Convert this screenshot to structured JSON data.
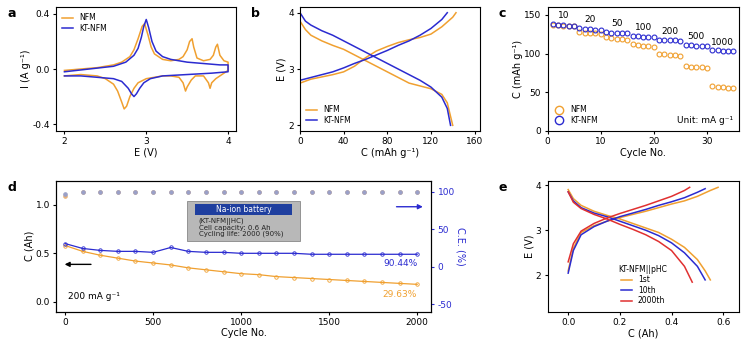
{
  "chart_data": [
    {
      "panel": "a",
      "type": "line",
      "x_label": "E (V)",
      "y_label": "I (A g⁻¹)",
      "xlim": [
        1.9,
        4.1
      ],
      "xticks": [
        2,
        3,
        4
      ],
      "ylim": [
        -0.45,
        0.45
      ],
      "yticks": [
        -0.4,
        0.0,
        0.4
      ],
      "legend": "upper left",
      "series": [
        {
          "name": "NFM",
          "color": "#f0a030",
          "x": [
            2.0,
            2.2,
            2.4,
            2.6,
            2.7,
            2.8,
            2.85,
            2.9,
            2.95,
            2.98,
            3.02,
            3.06,
            3.1,
            3.2,
            3.3,
            3.4,
            3.45,
            3.5,
            3.53,
            3.56,
            3.58,
            3.62,
            3.7,
            3.78,
            3.82,
            3.85,
            3.87,
            3.9,
            3.95,
            4.0,
            4.0,
            3.95,
            3.9,
            3.85,
            3.8,
            3.78,
            3.76,
            3.7,
            3.6,
            3.55,
            3.5,
            3.48,
            3.45,
            3.4,
            3.3,
            3.2,
            3.1,
            3.0,
            2.9,
            2.85,
            2.8,
            2.76,
            2.73,
            2.7,
            2.65,
            2.6,
            2.5,
            2.4,
            2.2,
            2.0
          ],
          "values": [
            -0.01,
            0.0,
            0.01,
            0.03,
            0.05,
            0.09,
            0.14,
            0.22,
            0.31,
            0.33,
            0.25,
            0.16,
            0.11,
            0.07,
            0.06,
            0.07,
            0.09,
            0.14,
            0.2,
            0.22,
            0.16,
            0.08,
            0.06,
            0.07,
            0.1,
            0.16,
            0.18,
            0.1,
            0.06,
            0.05,
            -0.01,
            -0.03,
            -0.05,
            -0.07,
            -0.1,
            -0.14,
            -0.1,
            -0.05,
            -0.05,
            -0.08,
            -0.13,
            -0.16,
            -0.1,
            -0.06,
            -0.05,
            -0.05,
            -0.06,
            -0.07,
            -0.1,
            -0.14,
            -0.2,
            -0.27,
            -0.29,
            -0.24,
            -0.16,
            -0.11,
            -0.07,
            -0.05,
            -0.04,
            -0.05
          ]
        },
        {
          "name": "KT-NFM",
          "color": "#2b2bd0",
          "x": [
            2.0,
            2.3,
            2.6,
            2.75,
            2.85,
            2.9,
            2.94,
            2.97,
            3.0,
            3.03,
            3.07,
            3.12,
            3.2,
            3.3,
            3.5,
            3.7,
            3.9,
            4.0,
            4.0,
            3.8,
            3.5,
            3.2,
            3.05,
            2.97,
            2.92,
            2.88,
            2.85,
            2.82,
            2.78,
            2.7,
            2.6,
            2.4,
            2.2,
            2.0
          ],
          "values": [
            -0.02,
            0.0,
            0.02,
            0.05,
            0.1,
            0.15,
            0.23,
            0.31,
            0.36,
            0.3,
            0.2,
            0.13,
            0.09,
            0.07,
            0.05,
            0.04,
            0.03,
            0.03,
            -0.02,
            -0.03,
            -0.04,
            -0.05,
            -0.07,
            -0.1,
            -0.14,
            -0.18,
            -0.2,
            -0.18,
            -0.14,
            -0.09,
            -0.07,
            -0.06,
            -0.05,
            -0.05
          ]
        }
      ]
    },
    {
      "panel": "b",
      "type": "line",
      "x_label": "C (mAh g⁻¹)",
      "y_label": "E (V)",
      "xlim": [
        0,
        165
      ],
      "xticks": [
        0,
        40,
        80,
        120,
        160
      ],
      "ylim": [
        1.9,
        4.1
      ],
      "yticks": [
        2,
        3,
        4
      ],
      "legend": "lower left",
      "series": [
        {
          "name": "NFM",
          "color": "#f0a030",
          "x": [
            0,
            10,
            20,
            30,
            40,
            50,
            60,
            70,
            80,
            90,
            100,
            110,
            120,
            130,
            140,
            143,
            null,
            0,
            5,
            10,
            20,
            30,
            40,
            50,
            60,
            70,
            80,
            90,
            100,
            110,
            120,
            130,
            135,
            140
          ],
          "values": [
            2.75,
            2.82,
            2.86,
            2.9,
            2.95,
            3.05,
            3.2,
            3.32,
            3.4,
            3.47,
            3.52,
            3.56,
            3.62,
            3.75,
            3.92,
            4.0,
            null,
            3.85,
            3.7,
            3.6,
            3.5,
            3.42,
            3.35,
            3.25,
            3.15,
            3.05,
            2.95,
            2.85,
            2.75,
            2.7,
            2.65,
            2.55,
            2.4,
            2.0
          ]
        },
        {
          "name": "KT-NFM",
          "color": "#2b2bd0",
          "x": [
            0,
            10,
            20,
            30,
            40,
            50,
            60,
            70,
            80,
            90,
            100,
            110,
            120,
            130,
            135,
            null,
            0,
            5,
            10,
            20,
            30,
            40,
            50,
            60,
            70,
            80,
            90,
            100,
            110,
            120,
            130,
            135,
            138
          ],
          "values": [
            2.8,
            2.85,
            2.9,
            2.95,
            3.02,
            3.1,
            3.17,
            3.25,
            3.33,
            3.42,
            3.5,
            3.6,
            3.72,
            3.88,
            4.0,
            null,
            4.0,
            3.85,
            3.78,
            3.68,
            3.6,
            3.5,
            3.4,
            3.3,
            3.2,
            3.1,
            3.0,
            2.9,
            2.8,
            2.68,
            2.5,
            2.3,
            2.0
          ]
        }
      ]
    },
    {
      "panel": "c",
      "type": "scatter",
      "marker": "o",
      "x_label": "Cycle No.",
      "y_label": "C (mAh g⁻¹)",
      "xlim": [
        0,
        36
      ],
      "xticks": [
        0,
        10,
        20,
        30
      ],
      "ylim": [
        0,
        160
      ],
      "yticks": [
        0,
        50,
        100,
        150
      ],
      "legend": "lower left",
      "rate_labels": [
        "10",
        "20",
        "50",
        "100",
        "200",
        "500",
        "1000"
      ],
      "note": "Unit: mA g⁻¹",
      "x": [
        1,
        2,
        3,
        4,
        5,
        6,
        7,
        8,
        9,
        10,
        11,
        12,
        13,
        14,
        15,
        16,
        17,
        18,
        19,
        20,
        21,
        22,
        23,
        24,
        25,
        26,
        27,
        28,
        29,
        30,
        31,
        32,
        33,
        34,
        35
      ],
      "series": [
        {
          "name": "NFM",
          "color": "#f0a030",
          "values": [
            137,
            137,
            136,
            136,
            135,
            128,
            127,
            126,
            126,
            125,
            121,
            120,
            119,
            119,
            118,
            112,
            111,
            110,
            110,
            109,
            100,
            99,
            98,
            98,
            97,
            84,
            83,
            82,
            82,
            81,
            58,
            57,
            57,
            56,
            56
          ]
        },
        {
          "name": "KT-NFM",
          "color": "#2b2bd0",
          "values": [
            138,
            137,
            137,
            136,
            136,
            133,
            132,
            132,
            131,
            131,
            128,
            127,
            127,
            126,
            126,
            123,
            123,
            122,
            122,
            122,
            118,
            117,
            117,
            117,
            116,
            111,
            111,
            110,
            110,
            110,
            104,
            104,
            103,
            103,
            103
          ]
        }
      ]
    },
    {
      "panel": "d",
      "type": "line",
      "x_label": "Cycle No.",
      "y_label": "C (Ah)",
      "y2_label": "C.E. (%)",
      "xlim": [
        -50,
        2080
      ],
      "xticks": [
        0,
        500,
        1000,
        1500,
        2000
      ],
      "ylim": [
        -0.1,
        1.25
      ],
      "yticks": [
        0.0,
        0.5,
        1.0
      ],
      "y2lim": [
        -60,
        115
      ],
      "y2ticks": [
        -50,
        0,
        50,
        100
      ],
      "note": "200 mA g⁻¹",
      "inset_texts": [
        "Na-ion battery",
        "(KT-NFM||HC)",
        "Cell capacity: 0.6 Ah",
        "Cycling life: 2000 (90%)"
      ],
      "x": [
        1,
        100,
        200,
        300,
        400,
        500,
        600,
        700,
        800,
        900,
        1000,
        1100,
        1200,
        1300,
        1400,
        1500,
        1600,
        1700,
        1800,
        1900,
        2000
      ],
      "series": [
        {
          "color": "#f0a030",
          "marker": "o",
          "end_label": "29.63%",
          "values": [
            0.58,
            0.52,
            0.48,
            0.45,
            0.42,
            0.4,
            0.38,
            0.35,
            0.33,
            0.31,
            0.29,
            0.28,
            0.26,
            0.25,
            0.24,
            0.23,
            0.22,
            0.21,
            0.2,
            0.19,
            0.18
          ]
        },
        {
          "color": "#2b2bd0",
          "marker": "o",
          "end_label": "90.44%",
          "values": [
            0.6,
            0.55,
            0.53,
            0.52,
            0.52,
            0.51,
            0.56,
            0.52,
            0.51,
            0.51,
            0.5,
            0.5,
            0.5,
            0.5,
            0.49,
            0.49,
            0.49,
            0.49,
            0.49,
            0.49,
            0.49
          ]
        },
        {
          "color": "#e8b27a",
          "type": "scatter",
          "marker": "o",
          "axis": "y2",
          "values": [
            95,
            99.7,
            99.8,
            99.8,
            99.8,
            99.8,
            99.8,
            99.8,
            99.8,
            99.8,
            99.8,
            99.8,
            99.8,
            99.8,
            99.8,
            99.8,
            99.8,
            99.8,
            99.8,
            99.8,
            99.8
          ]
        },
        {
          "color": "#9aa0c8",
          "type": "scatter",
          "marker": "o",
          "axis": "y2",
          "values": [
            97,
            99.9,
            99.9,
            99.9,
            99.9,
            99.9,
            99.9,
            99.9,
            99.9,
            99.9,
            99.9,
            99.9,
            99.9,
            99.9,
            99.9,
            99.9,
            99.9,
            99.9,
            99.9,
            99.9,
            99.9
          ]
        }
      ]
    },
    {
      "panel": "e",
      "type": "line",
      "x_label": "C (Ah)",
      "y_label": "E (V)",
      "xlim": [
        -0.08,
        0.66
      ],
      "xticks": [
        0.0,
        0.2,
        0.4,
        0.6
      ],
      "ylim": [
        1.2,
        4.1
      ],
      "yticks": [
        2,
        3,
        4
      ],
      "legend": "lower center",
      "legend_title": "KT-NFM||pHC",
      "series": [
        {
          "name": "1st",
          "color": "#f0a030",
          "x": [
            0,
            0.02,
            0.05,
            0.1,
            0.15,
            0.2,
            0.25,
            0.3,
            0.35,
            0.4,
            0.45,
            0.5,
            0.55,
            0.58,
            null,
            0,
            0.02,
            0.05,
            0.1,
            0.15,
            0.2,
            0.25,
            0.3,
            0.35,
            0.4,
            0.45,
            0.5,
            0.53,
            0.55
          ],
          "values": [
            2.1,
            2.6,
            2.95,
            3.1,
            3.2,
            3.28,
            3.35,
            3.42,
            3.5,
            3.58,
            3.65,
            3.75,
            3.88,
            3.95,
            null,
            3.9,
            3.7,
            3.55,
            3.42,
            3.33,
            3.25,
            3.15,
            3.05,
            2.95,
            2.8,
            2.62,
            2.35,
            2.1,
            1.9
          ]
        },
        {
          "name": "10th",
          "color": "#2b2bd0",
          "x": [
            0,
            0.02,
            0.05,
            0.1,
            0.15,
            0.2,
            0.25,
            0.3,
            0.35,
            0.4,
            0.45,
            0.5,
            0.53,
            null,
            0,
            0.02,
            0.05,
            0.1,
            0.15,
            0.2,
            0.25,
            0.3,
            0.35,
            0.4,
            0.45,
            0.5,
            0.53
          ],
          "values": [
            2.05,
            2.55,
            2.9,
            3.08,
            3.2,
            3.3,
            3.38,
            3.46,
            3.55,
            3.63,
            3.72,
            3.84,
            3.92,
            null,
            3.85,
            3.65,
            3.5,
            3.38,
            3.3,
            3.2,
            3.1,
            3.0,
            2.88,
            2.72,
            2.5,
            2.2,
            1.9
          ]
        },
        {
          "name": "2000th",
          "color": "#e03030",
          "x": [
            0,
            0.02,
            0.05,
            0.1,
            0.15,
            0.2,
            0.25,
            0.3,
            0.35,
            0.4,
            0.45,
            0.47,
            null,
            0,
            0.02,
            0.05,
            0.1,
            0.15,
            0.2,
            0.25,
            0.3,
            0.35,
            0.4,
            0.45,
            0.48
          ],
          "values": [
            2.3,
            2.7,
            2.98,
            3.15,
            3.27,
            3.37,
            3.46,
            3.55,
            3.65,
            3.75,
            3.88,
            3.95,
            null,
            3.85,
            3.62,
            3.48,
            3.35,
            3.25,
            3.13,
            3.02,
            2.9,
            2.75,
            2.55,
            2.2,
            1.85
          ]
        }
      ]
    }
  ]
}
